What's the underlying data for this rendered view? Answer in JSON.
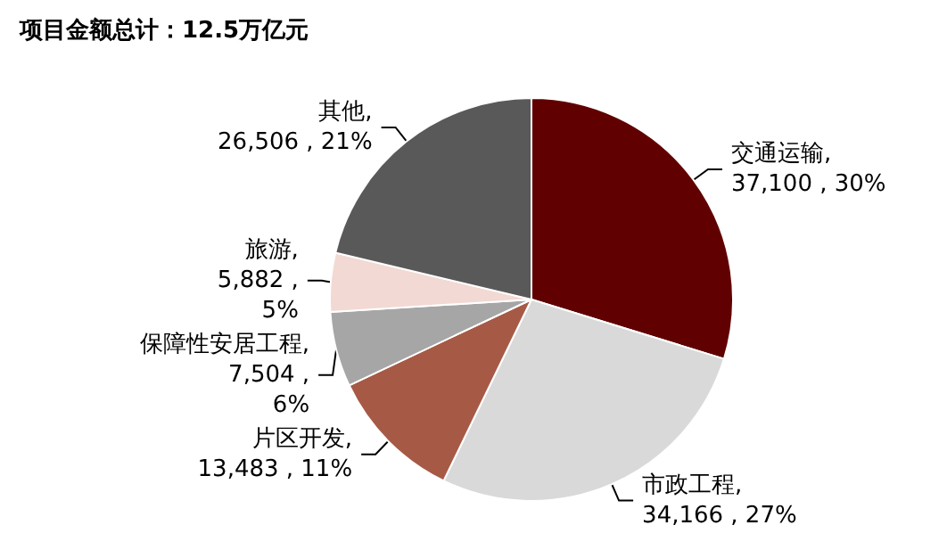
{
  "chart_data": {
    "type": "pie",
    "title": "项目金额总计：12.5万亿元",
    "categories": [
      "交通运输",
      "市政工程",
      "片区开发",
      "保障性安居工程",
      "旅游",
      "其他"
    ],
    "values": [
      37100,
      34166,
      13483,
      7504,
      5882,
      26506
    ],
    "colors": [
      "#600000",
      "#d9d9d9",
      "#a65a46",
      "#a6a6a6",
      "#f2d9d3",
      "#595959"
    ],
    "value_labels": [
      ",\n37,100 , 30%",
      ",\n34,166 , 27%",
      ",\n13,483 , 11%",
      ",\n7,504 ,\n6%",
      ",\n5,882 ,\n5%",
      ",\n26,506 , 21%"
    ]
  }
}
